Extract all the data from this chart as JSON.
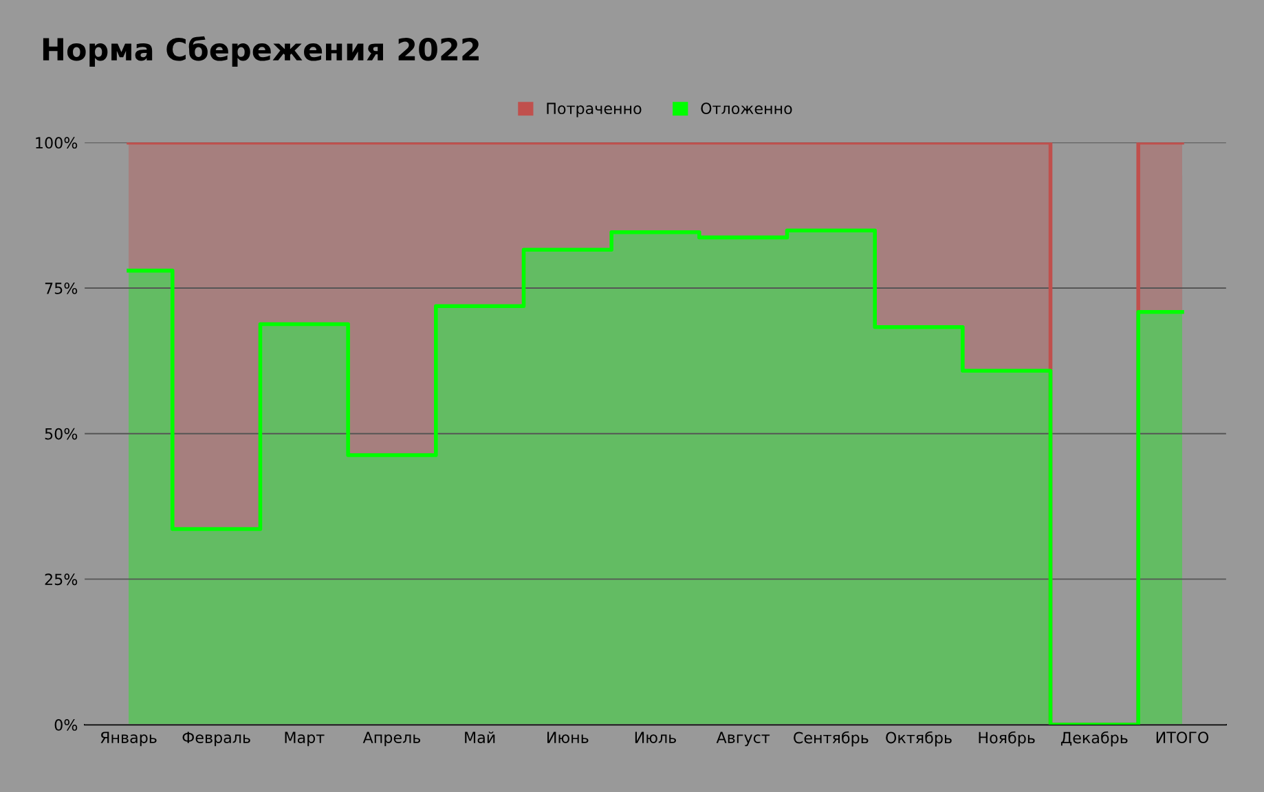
{
  "chart_data": {
    "type": "area",
    "title": "Норма Сбережения 2022",
    "stacked": true,
    "categories": [
      "Январь",
      "Февраль",
      "Март",
      "Апрель",
      "Май",
      "Июнь",
      "Июль",
      "Август",
      "Сентябрь",
      "Октябрь",
      "Ноябрь",
      "Декабрь",
      "ИТОГО"
    ],
    "series": [
      {
        "name": "Отложенно",
        "color": "#00ff00",
        "values": [
          78,
          33.6,
          68.8,
          46.3,
          71.9,
          81.6,
          84.6,
          83.7,
          84.9,
          68.3,
          60.8,
          0,
          70.9
        ]
      },
      {
        "name": "Потраченно",
        "color": "#c0504d",
        "values": [
          22,
          66.4,
          31.2,
          53.7,
          28.1,
          18.4,
          15.4,
          16.3,
          15.1,
          31.7,
          39.2,
          0,
          29.1
        ]
      }
    ],
    "ylim": [
      0,
      100
    ],
    "yticks": [
      {
        "value": 0,
        "label": "0%"
      },
      {
        "value": 25,
        "label": "25%"
      },
      {
        "value": 50,
        "label": "50%"
      },
      {
        "value": 75,
        "label": "75%"
      },
      {
        "value": 100,
        "label": "100%"
      }
    ],
    "grid": "y",
    "legend": "top"
  }
}
